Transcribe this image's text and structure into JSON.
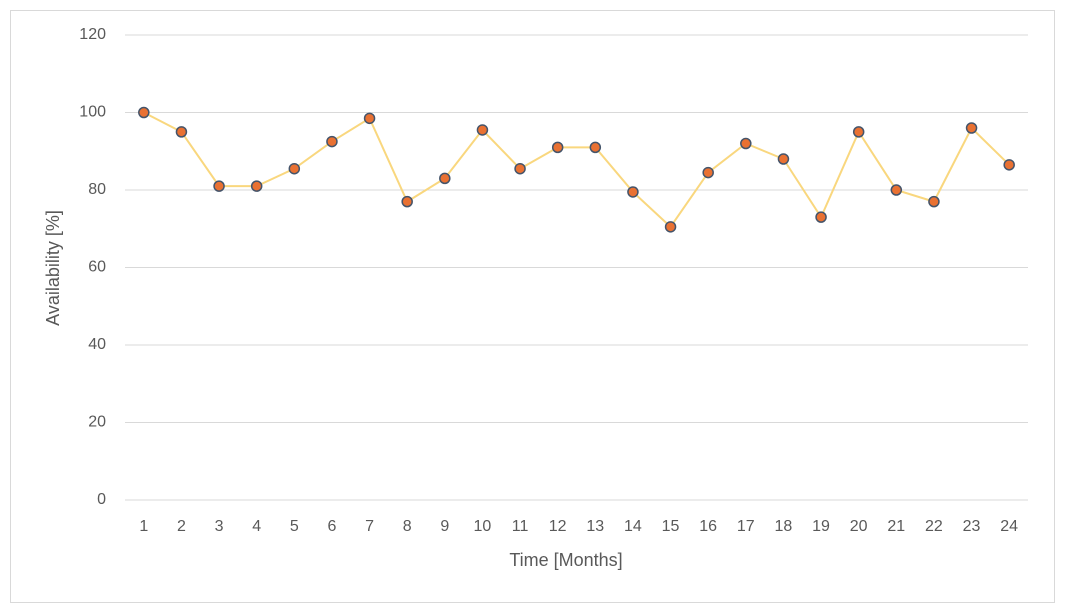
{
  "chart_data": {
    "type": "line",
    "x_label": "Time [Months]",
    "y_label": "Availability [%]",
    "categories": [
      "1",
      "2",
      "3",
      "4",
      "5",
      "6",
      "7",
      "8",
      "9",
      "10",
      "11",
      "12",
      "13",
      "14",
      "15",
      "16",
      "17",
      "18",
      "19",
      "20",
      "21",
      "22",
      "23",
      "24"
    ],
    "values": [
      100,
      95,
      81,
      81,
      85.5,
      92.5,
      98.5,
      77,
      83,
      95.5,
      85.5,
      91,
      91,
      79.5,
      70.5,
      84.5,
      92,
      88,
      73,
      95,
      80,
      77,
      96,
      86.5
    ],
    "color": "#f9d77e",
    "marker_color": "#e97132",
    "marker_edge_color": "#44546a",
    "ylim": [
      0,
      120
    ],
    "yticks": [
      0,
      20,
      40,
      60,
      80,
      100,
      120
    ],
    "grid": true
  }
}
